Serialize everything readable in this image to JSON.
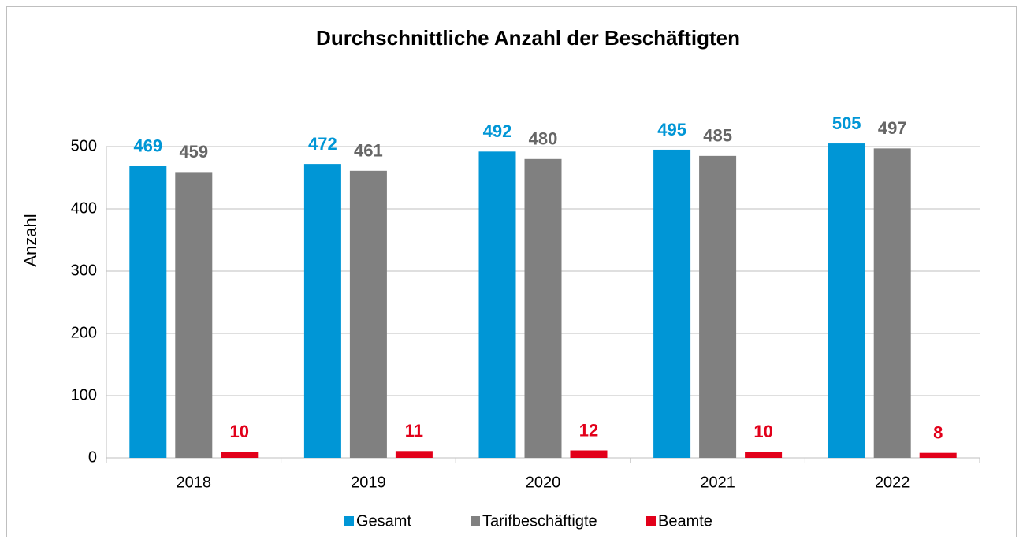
{
  "chart_data": {
    "type": "bar",
    "title": "Durchschnittliche Anzahl der Beschäftigten",
    "y_label": "Anzahl",
    "categories": [
      "2018",
      "2019",
      "2020",
      "2021",
      "2022"
    ],
    "series": [
      {
        "name": "Gesamt",
        "color": "#0096d6",
        "values": [
          469,
          472,
          492,
          495,
          505
        ]
      },
      {
        "name": "Tarifbeschäftigte",
        "color": "#808080",
        "values": [
          459,
          461,
          480,
          485,
          497
        ]
      },
      {
        "name": "Beamte",
        "color": "#e2001a",
        "values": [
          10,
          11,
          12,
          10,
          8
        ]
      }
    ],
    "ylim": [
      0,
      550
    ],
    "yticks": [
      0,
      100,
      200,
      300,
      400,
      500
    ],
    "grid": true,
    "legend": "bottom"
  }
}
